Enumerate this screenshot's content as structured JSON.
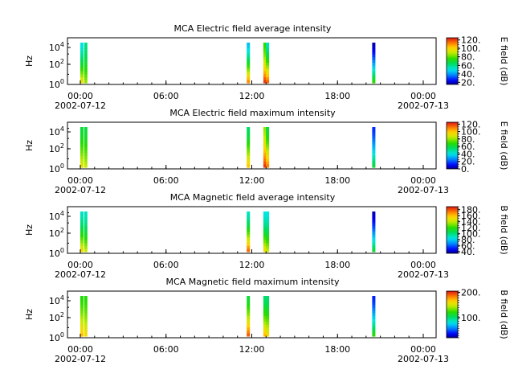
{
  "chart_data": [
    {
      "type": "heatmap",
      "title": "MCA  Electric field average intensity",
      "ylabel": "Hz",
      "yscale": "log",
      "y_tick_labels": [
        {
          "base": "10",
          "exp": "0"
        },
        {
          "base": "10",
          "exp": "2"
        },
        {
          "base": "10",
          "exp": "4"
        }
      ],
      "x_tick_labels": [
        "00:00",
        "06:00",
        "12:00",
        "18:00",
        "00:00"
      ],
      "x_date_labels": [
        "2002-07-12",
        "2002-07-13"
      ],
      "xlim": [
        "2002-07-12 00:00",
        "2002-07-13 00:00"
      ],
      "colorbar": {
        "label": "E field (dB)",
        "range": [
          15,
          125
        ],
        "ticks": [
          "20.",
          "40.",
          "60.",
          "80.",
          "100.",
          "120."
        ],
        "tick_values": [
          20,
          40,
          60,
          80,
          100,
          120
        ]
      },
      "stripes": [
        {
          "time": "00:00",
          "dB_low_freq": 95,
          "dB_high_freq": 50
        },
        {
          "time": "00:15",
          "dB_low_freq": 85,
          "dB_high_freq": 60
        },
        {
          "time": "10:50",
          "dB_low_freq": 110,
          "dB_high_freq": 45
        },
        {
          "time": "11:55",
          "dB_low_freq": 120,
          "dB_high_freq": 75
        },
        {
          "time": "12:05",
          "dB_low_freq": 115,
          "dB_high_freq": 55
        },
        {
          "time": "19:00",
          "dB_low_freq": 75,
          "dB_high_freq": 18
        }
      ]
    },
    {
      "type": "heatmap",
      "title": "MCA  Electric field maximum intensity",
      "ylabel": "Hz",
      "yscale": "log",
      "y_tick_labels": [
        {
          "base": "10",
          "exp": "0"
        },
        {
          "base": "10",
          "exp": "2"
        },
        {
          "base": "10",
          "exp": "4"
        }
      ],
      "x_tick_labels": [
        "00:00",
        "06:00",
        "12:00",
        "18:00",
        "00:00"
      ],
      "x_date_labels": [
        "2002-07-12",
        "2002-07-13"
      ],
      "xlim": [
        "2002-07-12 00:00",
        "2002-07-13 00:00"
      ],
      "colorbar": {
        "label": "E field (dB)",
        "range": [
          0,
          125
        ],
        "ticks": [
          "0.",
          "20.",
          "40.",
          "60.",
          "80.",
          "100.",
          "120."
        ],
        "tick_values": [
          0,
          20,
          40,
          60,
          80,
          100,
          120
        ]
      },
      "stripes": [
        {
          "time": "00:00",
          "dB_low_freq": 90,
          "dB_high_freq": 60
        },
        {
          "time": "00:15",
          "dB_low_freq": 85,
          "dB_high_freq": 60
        },
        {
          "time": "10:50",
          "dB_low_freq": 100,
          "dB_high_freq": 55
        },
        {
          "time": "11:55",
          "dB_low_freq": 120,
          "dB_high_freq": 80
        },
        {
          "time": "12:05",
          "dB_low_freq": 110,
          "dB_high_freq": 60
        },
        {
          "time": "19:00",
          "dB_low_freq": 60,
          "dB_high_freq": 15
        }
      ]
    },
    {
      "type": "heatmap",
      "title": "MCA  Magnetic field average intensity",
      "ylabel": "Hz",
      "yscale": "log",
      "y_tick_labels": [
        {
          "base": "10",
          "exp": "0"
        },
        {
          "base": "10",
          "exp": "2"
        },
        {
          "base": "10",
          "exp": "4"
        }
      ],
      "x_tick_labels": [
        "00:00",
        "06:00",
        "12:00",
        "18:00",
        "00:00"
      ],
      "x_date_labels": [
        "2002-07-12",
        "2002-07-13"
      ],
      "xlim": [
        "2002-07-12 00:00",
        "2002-07-13 00:00"
      ],
      "colorbar": {
        "label": "B field (dB)",
        "range": [
          35,
          190
        ],
        "ticks": [
          "40.",
          "60.",
          "80.",
          "100.",
          "120.",
          "140.",
          "160.",
          "180."
        ],
        "tick_values": [
          40,
          60,
          80,
          100,
          120,
          140,
          160,
          180
        ]
      },
      "stripes": [
        {
          "time": "00:00",
          "dB_low_freq": 150,
          "dB_high_freq": 90
        },
        {
          "time": "00:15",
          "dB_low_freq": 140,
          "dB_high_freq": 90
        },
        {
          "time": "10:50",
          "dB_low_freq": 175,
          "dB_high_freq": 90
        },
        {
          "time": "11:55",
          "dB_low_freq": 150,
          "dB_high_freq": 85
        },
        {
          "time": "12:05",
          "dB_low_freq": 140,
          "dB_high_freq": 85
        },
        {
          "time": "19:00",
          "dB_low_freq": 110,
          "dB_high_freq": 40
        }
      ]
    },
    {
      "type": "heatmap",
      "title": "MCA  Magnetic field maximum intensity",
      "ylabel": "Hz",
      "yscale": "log",
      "y_tick_labels": [
        {
          "base": "10",
          "exp": "0"
        },
        {
          "base": "10",
          "exp": "2"
        },
        {
          "base": "10",
          "exp": "4"
        }
      ],
      "x_tick_labels": [
        "00:00",
        "06:00",
        "12:00",
        "18:00",
        "00:00"
      ],
      "x_date_labels": [
        "2002-07-12",
        "2002-07-13"
      ],
      "xlim": [
        "2002-07-12 00:00",
        "2002-07-13 00:00"
      ],
      "colorbar": {
        "label": "B field (dB)",
        "range": [
          20,
          205
        ],
        "ticks": [
          "100.",
          "200."
        ],
        "tick_values": [
          100,
          200
        ]
      },
      "stripes": [
        {
          "time": "00:00",
          "dB_low_freq": 170,
          "dB_high_freq": 120
        },
        {
          "time": "00:15",
          "dB_low_freq": 160,
          "dB_high_freq": 120
        },
        {
          "time": "10:50",
          "dB_low_freq": 190,
          "dB_high_freq": 110
        },
        {
          "time": "11:55",
          "dB_low_freq": 170,
          "dB_high_freq": 100
        },
        {
          "time": "12:05",
          "dB_low_freq": 160,
          "dB_high_freq": 100
        },
        {
          "time": "19:00",
          "dB_low_freq": 120,
          "dB_high_freq": 40
        }
      ]
    }
  ]
}
